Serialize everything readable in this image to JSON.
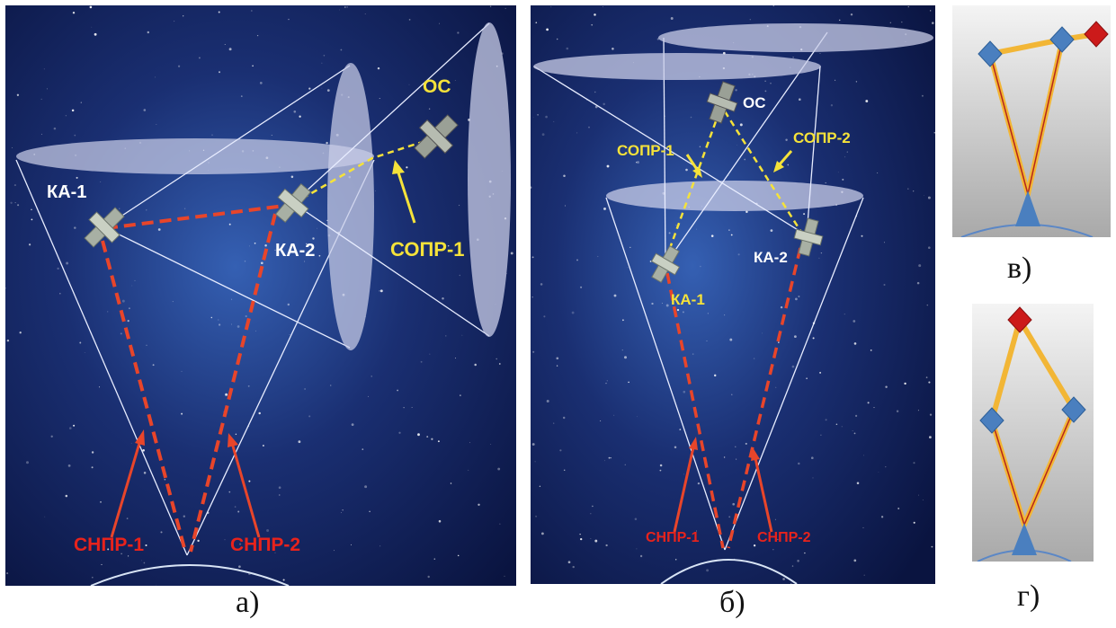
{
  "figure": {
    "panel_a": {
      "caption": "а)",
      "labels": {
        "ka1": "КА-1",
        "ka2": "КА-2",
        "os": "ОС",
        "sopr1": "СОПР-1",
        "snpr1": "СНПР-1",
        "snpr2": "СНПР-2"
      }
    },
    "panel_b": {
      "caption": "б)",
      "labels": {
        "os": "ОС",
        "sopr1": "СОПР-1",
        "sopr2": "СОПР-2",
        "ka1": "КА-1",
        "ka2": "КА-2",
        "snpr1": "СНПР-1",
        "snpr2": "СНПР-2"
      }
    },
    "panel_v": {
      "caption": "в)"
    },
    "panel_g": {
      "caption": "г)"
    }
  },
  "colors": {
    "space": "#0f1f55",
    "space_glow": "#2d4fa0",
    "ellipse": "#c9cde8",
    "red_link": "#e8452a",
    "yellow_link": "#f5e23a",
    "label_red": "#e8231c",
    "label_yellow": "#f5e23a",
    "label_white": "#ffffff",
    "node_blue": "#4a7fbf",
    "node_red": "#cc1a1a",
    "schema_orange": "#f2b636",
    "schema_dark": "#b5261a"
  }
}
